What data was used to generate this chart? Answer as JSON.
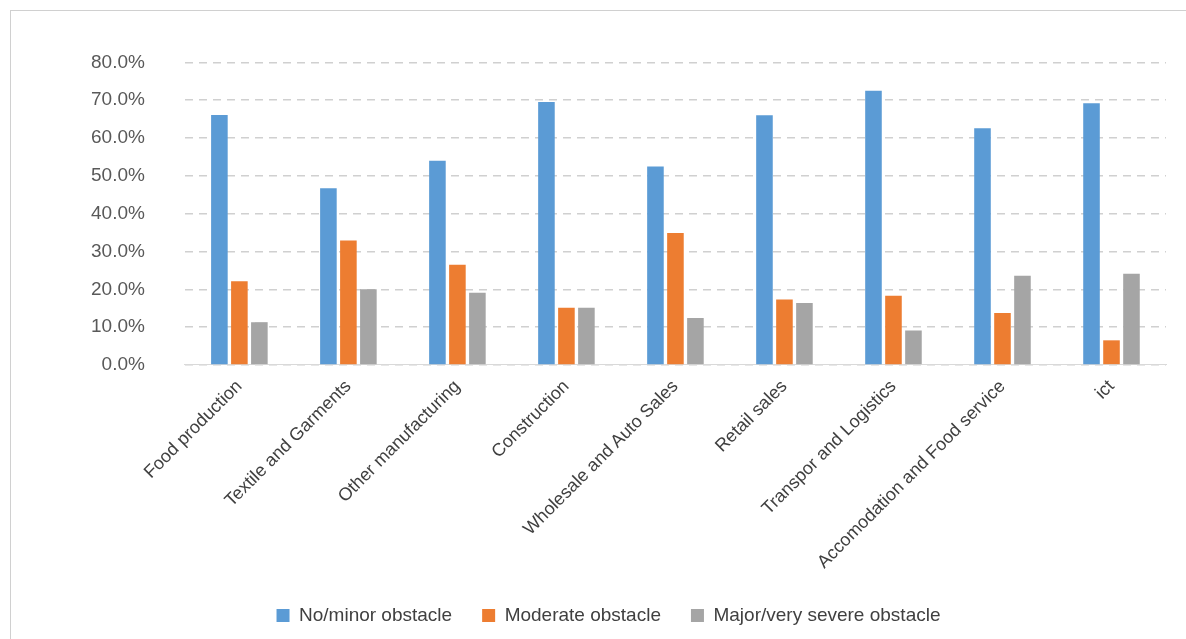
{
  "chart_data": {
    "type": "bar",
    "categories": [
      "Food production",
      "Textile and Garments",
      "Other manufacturing",
      "Construction",
      "Wholesale and Auto Sales",
      "Retail sales",
      "Transpor and Logistics",
      "Accomodation and Food service",
      "ict"
    ],
    "series": [
      {
        "name": "No/minor obstacle",
        "color": "#5b9bd5",
        "values": [
          66.1,
          46.7,
          54.0,
          69.5,
          52.5,
          66.0,
          72.5,
          62.6,
          69.2
        ]
      },
      {
        "name": "Moderate obstacle",
        "color": "#ed7d31",
        "values": [
          22.1,
          32.9,
          26.5,
          15.1,
          34.9,
          17.3,
          18.3,
          13.7,
          6.5
        ]
      },
      {
        "name": "Major/very severe obstacle",
        "color": "#a5a5a5",
        "values": [
          11.3,
          20.0,
          19.1,
          15.1,
          12.4,
          16.4,
          9.1,
          23.6,
          24.1
        ]
      }
    ],
    "ylim": [
      0,
      80
    ],
    "yticks": [
      {
        "value": 0,
        "label": "0.0%"
      },
      {
        "value": 10,
        "label": "10.0%"
      },
      {
        "value": 20,
        "label": "20.0%"
      },
      {
        "value": 30,
        "label": "30.0%"
      },
      {
        "value": 40,
        "label": "40.0%"
      },
      {
        "value": 50,
        "label": "50.0%"
      },
      {
        "value": 60,
        "label": "60.0%"
      },
      {
        "value": 70,
        "label": "70.0%"
      },
      {
        "value": 80,
        "label": "80.0%"
      }
    ],
    "grid": "y",
    "legend": "bottom"
  }
}
